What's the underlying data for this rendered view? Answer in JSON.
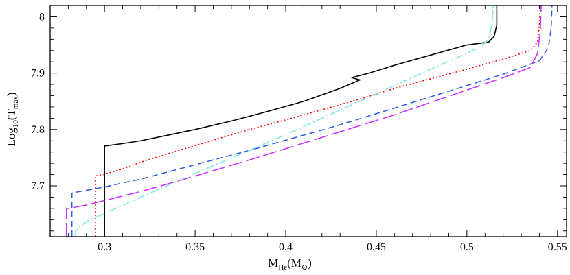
{
  "chart_data": {
    "type": "line",
    "title": "",
    "xlabel": {
      "main": "M",
      "sub": "He",
      "paren_open": "(M",
      "sub2": "⊙",
      "paren_close": ")"
    },
    "ylabel": {
      "main": "Log",
      "sub": "10",
      "mid": "(T",
      "sub2": "max",
      "close": ")"
    },
    "xlim": [
      0.27,
      0.555
    ],
    "ylim": [
      7.61,
      8.02
    ],
    "xticks": [
      0.3,
      0.35,
      0.4,
      0.45,
      0.5,
      0.55
    ],
    "xtick_labels": [
      "0.3",
      "0.35",
      "0.4",
      "0.45",
      "0.5",
      "0.55"
    ],
    "yticks": [
      7.7,
      7.8,
      7.9,
      8.0
    ],
    "ytick_labels": [
      "7.7",
      "7.8",
      "7.9",
      "8"
    ],
    "grid": false,
    "series": [
      {
        "name": "solid-black",
        "color": "#000000",
        "dash": "",
        "x": [
          0.3,
          0.3,
          0.301,
          0.303,
          0.31,
          0.32,
          0.335,
          0.35,
          0.37,
          0.39,
          0.41,
          0.43,
          0.441,
          0.4365,
          0.446,
          0.46,
          0.48,
          0.5,
          0.512,
          0.515,
          0.5165,
          0.5165
        ],
        "y": [
          7.61,
          7.771,
          7.771,
          7.772,
          7.775,
          7.78,
          7.79,
          7.8,
          7.815,
          7.832,
          7.85,
          7.873,
          7.888,
          7.892,
          7.9,
          7.914,
          7.932,
          7.95,
          7.955,
          7.965,
          7.985,
          8.02
        ]
      },
      {
        "name": "dotted-red",
        "color": "#ff0000",
        "dash": "2,3",
        "x": [
          0.295,
          0.295,
          0.296,
          0.3,
          0.31,
          0.32,
          0.34,
          0.36,
          0.38,
          0.4,
          0.42,
          0.44,
          0.46,
          0.48,
          0.5,
          0.52,
          0.535,
          0.539,
          0.54,
          0.5405
        ],
        "y": [
          7.61,
          7.718,
          7.718,
          7.721,
          7.73,
          7.742,
          7.762,
          7.781,
          7.8,
          7.817,
          7.835,
          7.853,
          7.873,
          7.89,
          7.907,
          7.925,
          7.94,
          7.955,
          7.985,
          8.02
        ]
      },
      {
        "name": "dashed-blue",
        "color": "#3060e0",
        "dash": "9,5",
        "x": [
          0.282,
          0.282,
          0.283,
          0.29,
          0.3,
          0.32,
          0.34,
          0.36,
          0.38,
          0.4,
          0.42,
          0.44,
          0.46,
          0.48,
          0.5,
          0.52,
          0.54,
          0.545,
          0.5465,
          0.547
        ],
        "y": [
          7.61,
          7.687,
          7.688,
          7.692,
          7.698,
          7.712,
          7.729,
          7.746,
          7.763,
          7.781,
          7.799,
          7.818,
          7.838,
          7.858,
          7.878,
          7.898,
          7.922,
          7.945,
          7.98,
          8.02
        ]
      },
      {
        "name": "longdash-magenta",
        "color": "#cc33ff",
        "dash": "20,6",
        "x": [
          0.279,
          0.279,
          0.28,
          0.29,
          0.3,
          0.32,
          0.34,
          0.36,
          0.38,
          0.4,
          0.42,
          0.44,
          0.46,
          0.48,
          0.5,
          0.52,
          0.535,
          0.539,
          0.5405,
          0.541
        ],
        "y": [
          7.61,
          7.66,
          7.66,
          7.666,
          7.674,
          7.69,
          7.708,
          7.727,
          7.746,
          7.766,
          7.786,
          7.806,
          7.826,
          7.848,
          7.87,
          7.892,
          7.91,
          7.935,
          7.975,
          8.02
        ]
      },
      {
        "name": "dashdot-cyan",
        "color": "#80e8e0",
        "dash": "12,4,2,4",
        "x": [
          0.284,
          0.284,
          0.287,
          0.292,
          0.3,
          0.32,
          0.34,
          0.36,
          0.38,
          0.4,
          0.42,
          0.44,
          0.46,
          0.48,
          0.5,
          0.508,
          0.512,
          0.514,
          0.5145
        ],
        "y": [
          7.61,
          7.62,
          7.63,
          7.64,
          7.651,
          7.68,
          7.708,
          7.736,
          7.763,
          7.791,
          7.82,
          7.849,
          7.878,
          7.907,
          7.935,
          7.948,
          7.96,
          7.99,
          8.02
        ]
      }
    ]
  }
}
